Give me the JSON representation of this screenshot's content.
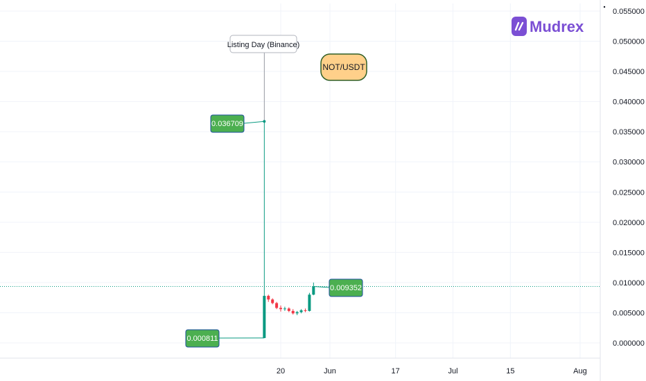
{
  "brand": {
    "name": "Mudrex",
    "icon": "mudrex-logo-icon",
    "color": "#7b4fd4"
  },
  "pair_label": "NOT/USDT",
  "chart_data": {
    "type": "candlestick",
    "title": "",
    "xlabel": "",
    "ylabel": "",
    "x_ticks": [
      "20",
      "Jun",
      "17",
      "Jul",
      "15",
      "Aug"
    ],
    "x_tick_dates": [
      "2024-05-20",
      "2024-06-01",
      "2024-06-17",
      "2024-07-01",
      "2024-07-15",
      "2024-08-01"
    ],
    "y_ticks": [
      "0.055000",
      "0.050000",
      "0.045000",
      "0.040000",
      "0.035000",
      "0.030000",
      "0.025000",
      "0.020000",
      "0.015000",
      "0.010000",
      "0.005000",
      "0.000000"
    ],
    "ylim": [
      0,
      0.0555
    ],
    "grid": true,
    "up_color": "#089981",
    "down_color": "#f23645",
    "candles": [
      {
        "date": "2024-05-16",
        "open": 0.000811,
        "high": 0.036709,
        "low": 0.000811,
        "close": 0.0078
      },
      {
        "date": "2024-05-17",
        "open": 0.0078,
        "high": 0.008,
        "low": 0.0068,
        "close": 0.0072
      },
      {
        "date": "2024-05-18",
        "open": 0.0072,
        "high": 0.0074,
        "low": 0.0064,
        "close": 0.0066
      },
      {
        "date": "2024-05-19",
        "open": 0.0066,
        "high": 0.0068,
        "low": 0.0056,
        "close": 0.0058
      },
      {
        "date": "2024-05-20",
        "open": 0.0058,
        "high": 0.0062,
        "low": 0.0052,
        "close": 0.0056
      },
      {
        "date": "2024-05-21",
        "open": 0.0056,
        "high": 0.006,
        "low": 0.0053,
        "close": 0.0057
      },
      {
        "date": "2024-05-22",
        "open": 0.0057,
        "high": 0.0059,
        "low": 0.0051,
        "close": 0.0053
      },
      {
        "date": "2024-05-23",
        "open": 0.0053,
        "high": 0.0056,
        "low": 0.0047,
        "close": 0.0049
      },
      {
        "date": "2024-05-24",
        "open": 0.0049,
        "high": 0.0053,
        "low": 0.0046,
        "close": 0.0051
      },
      {
        "date": "2024-05-25",
        "open": 0.0051,
        "high": 0.0056,
        "low": 0.0049,
        "close": 0.0054
      },
      {
        "date": "2024-05-26",
        "open": 0.0054,
        "high": 0.0057,
        "low": 0.0051,
        "close": 0.0053
      },
      {
        "date": "2024-05-27",
        "open": 0.0053,
        "high": 0.0083,
        "low": 0.0052,
        "close": 0.008
      },
      {
        "date": "2024-05-28",
        "open": 0.008,
        "high": 0.01,
        "low": 0.0079,
        "close": 0.009352
      }
    ],
    "annotations": {
      "listing_day": {
        "text": "Listing Day (Binance)",
        "date": "2024-05-16"
      },
      "high_label": {
        "value": 0.036709,
        "text": "0.036709",
        "date": "2024-05-16"
      },
      "low_label": {
        "value": 0.000811,
        "text": "0.000811",
        "date": "2024-05-16"
      },
      "current_label": {
        "value": 0.009352,
        "text": "0.009352",
        "date": "2024-05-28"
      }
    },
    "current_price": 0.009352
  }
}
